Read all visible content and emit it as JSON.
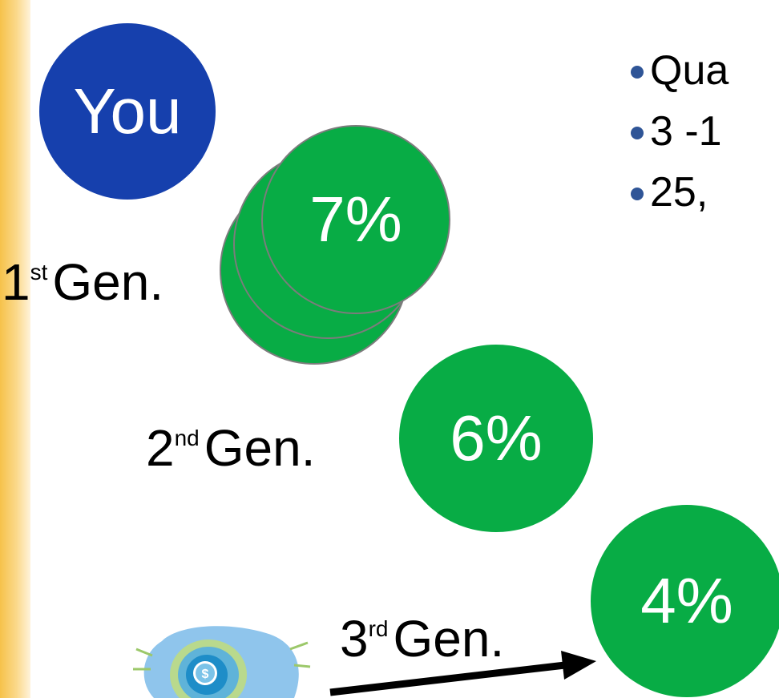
{
  "you_label": "You",
  "generations": [
    {
      "label": "1",
      "suffix": "st",
      "word": "Gen.",
      "percent": "7%"
    },
    {
      "label": "2",
      "suffix": "nd",
      "word": "Gen.",
      "percent": "6%"
    },
    {
      "label": "3",
      "suffix": "rd",
      "word": "Gen.",
      "percent": "4%"
    }
  ],
  "bullets": [
    "Qua",
    "3 -1",
    "25,"
  ],
  "colors": {
    "you_circle": "#1640ad",
    "green_circle": "#08ac45",
    "edge_strip": "#f6c24a",
    "bullet_dot": "#2f5597"
  },
  "icons": [
    "money-bag-icon",
    "arrow-icon"
  ]
}
